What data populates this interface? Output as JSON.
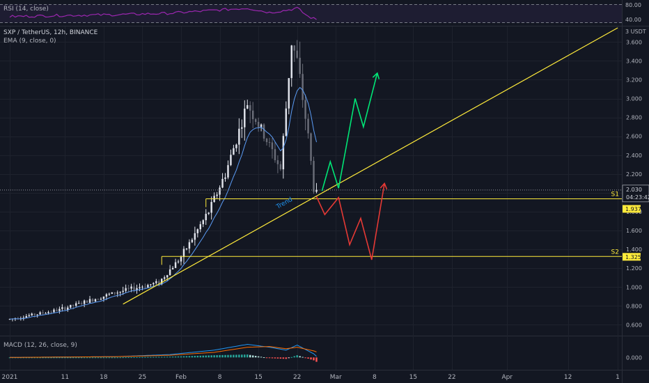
{
  "rsi": {
    "label": "RSI (14, close)",
    "levels": [
      "80.00",
      "40.00"
    ]
  },
  "header": {
    "symbol_line": "SXP / TetherUS, 12h, BINANCE",
    "ema_line": "EMA (9, close, 0)"
  },
  "macd": {
    "label": "MACD (12, 26, close, 9)",
    "zero_label": "0.000"
  },
  "price_axis": {
    "unit": "USDT",
    "top_label": "3 USDT"
  },
  "annotations": {
    "trend_text": "Trend",
    "s1_text": "S1",
    "s2_text": "S2",
    "current_price": "2.030",
    "countdown": "04:23:42",
    "s1_price": "1.937",
    "s2_price": "1.325"
  },
  "colors": {
    "background": "#131722",
    "bull": "#e0e3eb",
    "bear": "#6a6d78",
    "ema": "#2962ff",
    "support": "#ffeb3b",
    "trendline": "#ffeb3b",
    "scenario_up": "#00e676",
    "scenario_down": "#e53935",
    "rsi": "#9c27b0",
    "macd_line": "#2196f3",
    "signal_line": "#ff6d00"
  },
  "chart_data": {
    "type": "candlestick",
    "y_ticks": [
      0.6,
      0.8,
      1.0,
      1.2,
      1.4,
      1.6,
      1.8,
      2.0,
      2.2,
      2.4,
      2.6,
      2.8,
      3.0,
      3.2,
      3.4,
      3.6
    ],
    "y_range": [
      0.5,
      3.75
    ],
    "x_ticks": [
      "2021",
      "11",
      "18",
      "25",
      "Feb",
      "8",
      "15",
      "22",
      "Mar",
      "8",
      "15",
      "22",
      "Apr",
      "12",
      "1"
    ],
    "x_tick_days": [
      1,
      11,
      18,
      25,
      32,
      39,
      46,
      53,
      60,
      67,
      74,
      81,
      91,
      102,
      111
    ],
    "x_range_days": [
      0.5,
      111.5
    ],
    "price_key_points": [
      [
        1,
        0.66
      ],
      [
        10,
        0.76
      ],
      [
        20,
        0.94
      ],
      [
        28,
        1.05
      ],
      [
        32,
        1.32
      ],
      [
        37,
        1.8
      ],
      [
        40,
        2.2
      ],
      [
        43,
        2.75
      ],
      [
        44,
        2.95
      ],
      [
        46,
        2.72
      ],
      [
        48,
        2.5
      ],
      [
        50,
        2.25
      ],
      [
        51,
        2.9
      ],
      [
        52,
        3.6
      ],
      [
        53,
        3.4
      ],
      [
        54,
        3.0
      ],
      [
        55,
        2.6
      ],
      [
        56,
        2.05
      ],
      [
        56.5,
        2.03
      ]
    ],
    "s1": 1.937,
    "s2": 1.325,
    "current_price": 2.03,
    "trendline": [
      [
        21.5,
        0.82
      ],
      [
        111,
        3.75
      ]
    ],
    "s1_start_day": 36.5,
    "s2_start_day": 28.5,
    "trend_label_at": [
      49.5,
      1.83
    ],
    "green_path": [
      [
        57.5,
        2.02
      ],
      [
        59,
        2.33
      ],
      [
        60.5,
        2.05
      ],
      [
        63.5,
        3.0
      ],
      [
        65,
        2.7
      ],
      [
        67.5,
        3.27
      ]
    ],
    "red_path": [
      [
        56.5,
        1.96
      ],
      [
        58,
        1.77
      ],
      [
        60.5,
        1.95
      ],
      [
        62.5,
        1.45
      ],
      [
        64.5,
        1.73
      ],
      [
        66.5,
        1.29
      ],
      [
        68.8,
        2.1
      ]
    ],
    "rsi_levels": [
      80,
      40
    ],
    "rsi_range": [
      30,
      100
    ],
    "rsi_key_points": [
      [
        1,
        55
      ],
      [
        10,
        58
      ],
      [
        20,
        60
      ],
      [
        30,
        64
      ],
      [
        38,
        72
      ],
      [
        44,
        78
      ],
      [
        48,
        66
      ],
      [
        51,
        72
      ],
      [
        53,
        78
      ],
      [
        55,
        55
      ],
      [
        57,
        44
      ]
    ],
    "macd_line_key_points": [
      [
        1,
        0.0
      ],
      [
        20,
        0.01
      ],
      [
        30,
        0.04
      ],
      [
        38,
        0.1
      ],
      [
        44,
        0.18
      ],
      [
        48,
        0.14
      ],
      [
        51,
        0.1
      ],
      [
        53,
        0.17
      ],
      [
        56,
        0.05
      ],
      [
        57,
        -0.02
      ]
    ],
    "signal_line_key_points": [
      [
        1,
        0.0
      ],
      [
        20,
        0.01
      ],
      [
        30,
        0.03
      ],
      [
        38,
        0.07
      ],
      [
        44,
        0.14
      ],
      [
        48,
        0.15
      ],
      [
        51,
        0.12
      ],
      [
        53,
        0.14
      ],
      [
        56,
        0.09
      ],
      [
        57,
        0.06
      ]
    ],
    "macd_range": [
      -0.16,
      0.28
    ]
  }
}
